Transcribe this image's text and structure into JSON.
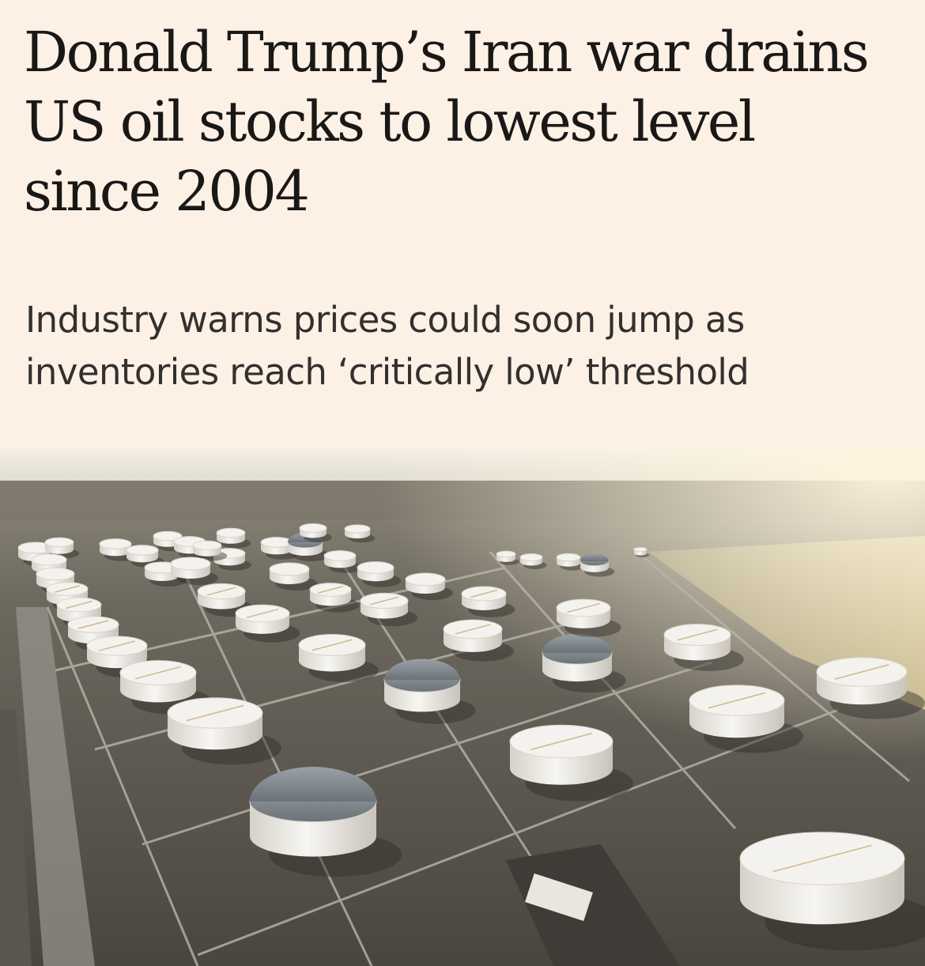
{
  "article": {
    "headline": "Donald Trump’s Iran war drains US oil stocks to lowest level since 2004",
    "standfirst": "Industry warns prices could soon jump as inventories reach ‘critically low’ threshold"
  },
  "photo": {
    "subject": "aerial-oil-storage-tanks",
    "colors": {
      "background": "#fdf1e6",
      "sky": "#f2eee6",
      "ground": "#5f5a52",
      "field": "#b3a574",
      "tank": "#f3f1ec",
      "tank_shade": "#cfcac1",
      "dome": "#7e868d"
    }
  }
}
